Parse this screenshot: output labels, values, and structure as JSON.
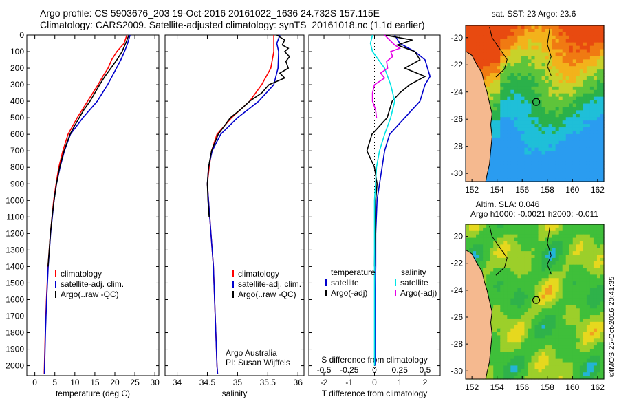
{
  "header": {
    "line1": "Argo profile: CS 5903676_203 19-Oct-2016 20161022_1636 24.732S 157.115E",
    "line2": "Climatology: CARS2009. Satellite-adjusted climatology: synTS_20161018.nc (1.1d earlier)"
  },
  "stamp": "©IMOS 25-Oct-2016 20:41:35",
  "colors": {
    "climatology": "#ff0000",
    "satellite": "#0000cc",
    "argo": "#000000",
    "sal_satellite": "#00e5e5",
    "sal_argo": "#e600e6",
    "land": "#f5b98f"
  },
  "chart_data": [
    {
      "id": "temperature",
      "type": "line",
      "xlabel": "temperature (deg C)",
      "ylabel": "",
      "xlim": [
        -2,
        31
      ],
      "ylim": [
        2060,
        0
      ],
      "xticks": [
        0,
        5,
        10,
        15,
        20,
        25,
        30
      ],
      "yticks": [
        0,
        100,
        200,
        300,
        400,
        500,
        600,
        700,
        800,
        900,
        1000,
        1100,
        1200,
        1300,
        1400,
        1500,
        1600,
        1700,
        1800,
        1900,
        2000
      ],
      "legend": [
        "climatology",
        "satellite-adj. clim.",
        "Argo(..raw -QC)"
      ],
      "series": [
        {
          "name": "climatology",
          "color": "#ff0000",
          "depth": [
            0,
            50,
            100,
            150,
            200,
            250,
            300,
            400,
            500,
            600,
            700,
            800,
            900,
            1000,
            1200,
            1400,
            1600,
            1800,
            2000,
            2050
          ],
          "values": [
            23,
            22.3,
            20.5,
            19.2,
            18.3,
            17,
            15.8,
            13.2,
            10.6,
            8.3,
            7,
            6,
            5.3,
            4.7,
            3.9,
            3.3,
            2.9,
            2.6,
            2.4,
            2.35
          ]
        },
        {
          "name": "satellite-adj. clim.",
          "color": "#0000cc",
          "depth": [
            0,
            50,
            100,
            150,
            200,
            250,
            300,
            400,
            500,
            600,
            700,
            800,
            900,
            1000,
            1200,
            1400,
            1600,
            1800,
            2000,
            2050
          ],
          "values": [
            23.8,
            23.2,
            22.4,
            21.5,
            20.4,
            19.3,
            18.2,
            15.6,
            12,
            8.9,
            7.4,
            6.3,
            5.4,
            4.8,
            3.95,
            3.35,
            2.95,
            2.65,
            2.45,
            2.4
          ]
        },
        {
          "name": "Argo(..raw -QC)",
          "color": "#000000",
          "depth": [
            0,
            50,
            100,
            150,
            200,
            250,
            300,
            400,
            450,
            500,
            550,
            600,
            700,
            800,
            900,
            1000,
            1100,
            1200,
            1300,
            1400
          ],
          "values": [
            23.5,
            22.7,
            21.8,
            20.5,
            19,
            17.5,
            16.2,
            13.8,
            12.3,
            11.1,
            9.9,
            8.8,
            7.3,
            6.2,
            5.4,
            4.8,
            4.3,
            3.9,
            3.6,
            3.3
          ]
        }
      ]
    },
    {
      "id": "salinity",
      "type": "line",
      "xlabel": "salinity",
      "ylabel": "",
      "xlim": [
        33.8,
        36.1
      ],
      "ylim": [
        2060,
        0
      ],
      "xticks": [
        34,
        34.5,
        35,
        35.5,
        36
      ],
      "legend": [
        "climatology",
        "satellite-adj. clim.",
        "Argo(..raw -QC)"
      ],
      "annotation": [
        "Argo Australia",
        "PI: Susan Wijffels"
      ],
      "series": [
        {
          "name": "climatology",
          "color": "#ff0000",
          "depth": [
            0,
            50,
            100,
            200,
            300,
            400,
            500,
            600,
            700,
            800,
            900,
            1000,
            1200,
            1400,
            1600,
            1800,
            2000,
            2050
          ],
          "values": [
            35.6,
            35.6,
            35.6,
            35.55,
            35.4,
            35.2,
            34.9,
            34.66,
            34.57,
            34.53,
            34.5,
            34.52,
            34.56,
            34.6,
            34.62,
            34.64,
            34.66,
            34.67
          ]
        },
        {
          "name": "satellite-adj. clim.",
          "color": "#0000cc",
          "depth": [
            0,
            50,
            100,
            200,
            300,
            400,
            500,
            600,
            700,
            800,
            900,
            1000,
            1200,
            1400,
            1600,
            1800,
            2000,
            2050
          ],
          "values": [
            35.7,
            35.65,
            35.68,
            35.67,
            35.6,
            35.35,
            35.0,
            34.72,
            34.58,
            34.52,
            34.5,
            34.52,
            34.56,
            34.6,
            34.62,
            34.64,
            34.66,
            34.67
          ]
        },
        {
          "name": "Argo(..raw -QC)",
          "color": "#000000",
          "depth": [
            0,
            30,
            60,
            80,
            100,
            130,
            160,
            200,
            230,
            260,
            300,
            350,
            400,
            450,
            500,
            550,
            600,
            700,
            800,
            900,
            1000,
            1100
          ],
          "values": [
            35.65,
            35.78,
            35.74,
            35.84,
            35.78,
            35.86,
            35.8,
            35.84,
            35.7,
            35.78,
            35.52,
            35.4,
            35.2,
            35.05,
            34.88,
            34.78,
            34.68,
            34.57,
            34.52,
            34.5,
            34.51,
            34.53
          ]
        }
      ]
    },
    {
      "id": "differences",
      "type": "line",
      "xlabel": "T difference from climatology",
      "xlabel_top": "S difference from climatology",
      "xlim": [
        -2.6,
        2.6
      ],
      "ylim": [
        2060,
        0
      ],
      "xticks": [
        -2,
        -1,
        0,
        1,
        2
      ],
      "xticks_salinity": [
        -0.5,
        -0.25,
        0,
        0.25,
        0.5
      ],
      "legend_temperature_title": "temperature",
      "legend_salinity_title": "salinity",
      "legend": [
        "satellite",
        "Argo(-adj)",
        "satellite",
        "Argo(-adj)"
      ],
      "series": [
        {
          "name": "temperature satellite",
          "color": "#0000cc",
          "depth": [
            0,
            50,
            100,
            150,
            200,
            250,
            300,
            400,
            500,
            600,
            700,
            800,
            900,
            1000,
            1200,
            1400,
            1600,
            1800,
            2000
          ],
          "values": [
            0.8,
            1.0,
            1.6,
            2.0,
            2.1,
            2.2,
            2.0,
            1.8,
            1.2,
            0.6,
            0.4,
            0.3,
            0.2,
            0.1,
            0.05,
            0.05,
            0.03,
            0.02,
            0.02
          ]
        },
        {
          "name": "temperature Argo(-adj)",
          "color": "#000000",
          "depth": [
            0,
            30,
            60,
            100,
            150,
            200,
            250,
            300,
            350,
            400,
            450,
            500,
            550,
            600,
            700,
            800,
            900,
            1000,
            1200,
            1400
          ],
          "values": [
            0.4,
            1.5,
            0.9,
            1.6,
            1.8,
            1.2,
            2.0,
            1.4,
            1.0,
            0.7,
            0.6,
            0.5,
            0.2,
            -0.1,
            -0.3,
            0,
            0.1,
            0.05,
            0.02,
            0
          ]
        },
        {
          "name": "salinity satellite",
          "color": "#00e5e5",
          "depth": [
            0,
            50,
            100,
            200,
            300,
            400,
            500,
            600,
            700,
            800,
            900,
            1000,
            1200,
            1400,
            1600,
            1800,
            2000
          ],
          "values": [
            -0.02,
            -0.04,
            -0.02,
            0.1,
            0.16,
            0.2,
            0.16,
            0.1,
            0.05,
            0.02,
            0.01,
            0,
            0,
            0,
            0,
            0,
            0
          ]
        },
        {
          "name": "salinity Argo(-adj)",
          "color": "#e600e6",
          "depth": [
            0,
            30,
            60,
            80,
            100,
            130,
            160,
            200,
            230,
            260,
            300,
            350,
            400,
            450,
            500
          ],
          "values": [
            0.1,
            0.15,
            0.2,
            0.25,
            0.16,
            0.18,
            0.12,
            0.13,
            0.06,
            0.1,
            0.0,
            -0.02,
            -0.02,
            0.01,
            0.02
          ]
        }
      ]
    },
    {
      "id": "sst_map",
      "type": "heatmap",
      "title": "sat. SST: 23 Argo: 23.6",
      "xlim": [
        151.5,
        162.5
      ],
      "ylim": [
        -30.6,
        -19.1
      ],
      "xticks": [
        152,
        154,
        156,
        158,
        160,
        162
      ],
      "yticks": [
        -20,
        -22,
        -24,
        -26,
        -28,
        -30
      ],
      "argo_position": [
        157.115,
        -24.732
      ]
    },
    {
      "id": "sla_map",
      "type": "heatmap",
      "title": "Altim. SLA: 0.046",
      "subtitle": "Argo h1000: -0.0021 h2000: -0.011",
      "xlim": [
        151.5,
        162.5
      ],
      "ylim": [
        -30.6,
        -19.1
      ],
      "xticks": [
        152,
        154,
        156,
        158,
        160,
        162
      ],
      "yticks": [
        -20,
        -22,
        -24,
        -26,
        -28,
        -30
      ],
      "argo_position": [
        157.115,
        -24.732
      ]
    }
  ]
}
